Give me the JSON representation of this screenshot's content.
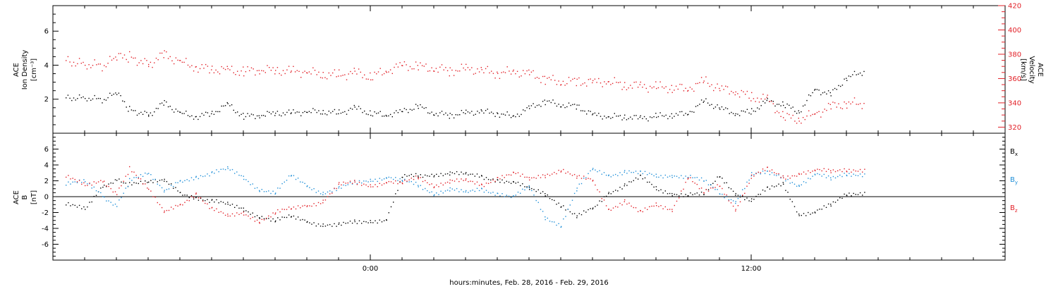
{
  "chart_data": [
    {
      "type": "scatter",
      "panel": "top",
      "xlabel": "hours:minutes, Feb. 28, 2016 - Feb. 29, 2016",
      "x_ticks": [
        "0:00",
        "12:00"
      ],
      "ylabel_left": [
        "ACE",
        "Ion Density",
        "[cm⁻³]"
      ],
      "ylabel_right": [
        "ACE",
        "Velocity",
        "[km/s]"
      ],
      "yticks_left": [
        "2",
        "4",
        "6"
      ],
      "yticks_right": [
        "320",
        "340",
        "360",
        "380",
        "400",
        "420"
      ],
      "ylim_left": [
        0,
        7.5
      ],
      "ylim_right": [
        315,
        420
      ],
      "xlim_hours": [
        -10,
        20
      ],
      "colors": {
        "density": "#000000",
        "velocity": "#e21f26"
      },
      "series": [
        {
          "axis": "left",
          "x": [
            -9.6,
            -9,
            -8.4,
            -8,
            -7.6,
            -7,
            -6.5,
            -6,
            -5.5,
            -5,
            -4.5,
            -4,
            -3.5,
            -3,
            -2.5,
            -2,
            -1.5,
            -1,
            -0.5,
            0,
            0.5,
            1,
            1.5,
            2,
            2.5,
            3,
            3.5,
            4,
            4.5,
            5,
            5.5,
            6,
            6.5,
            7,
            7.5,
            8,
            8.5,
            9,
            9.5,
            10,
            10.5,
            11,
            11.5,
            12,
            12.5,
            13,
            13.5,
            14,
            14.5,
            15,
            15.6
          ],
          "values": [
            2.1,
            2.1,
            2.0,
            2.4,
            1.4,
            1.1,
            1.8,
            1.2,
            1.0,
            1.2,
            1.7,
            1.0,
            1.1,
            1.2,
            1.2,
            1.3,
            1.3,
            1.2,
            1.5,
            1.2,
            1.1,
            1.3,
            1.6,
            1.2,
            1.1,
            1.2,
            1.3,
            1.2,
            1.0,
            1.5,
            1.9,
            1.7,
            1.6,
            1.1,
            1.0,
            1.0,
            0.9,
            1.0,
            1.1,
            1.2,
            1.9,
            1.5,
            1.2,
            1.3,
            1.9,
            1.7,
            1.3,
            2.6,
            2.3,
            3.3,
            3.7
          ]
        },
        {
          "axis": "right",
          "x": [
            -9.6,
            -9,
            -8.4,
            -8,
            -7.6,
            -7,
            -6.5,
            -6,
            -5.5,
            -5,
            -4.5,
            -4,
            -3.5,
            -3,
            -2.5,
            -2,
            -1.5,
            -1,
            -0.5,
            0,
            0.5,
            1,
            1.5,
            2,
            2.5,
            3,
            3.5,
            4,
            4.5,
            5,
            5.5,
            6,
            6.5,
            7,
            7.5,
            8,
            8.5,
            9,
            9.5,
            10,
            10.5,
            11,
            11.5,
            12,
            12.5,
            13,
            13.5,
            14,
            14.5,
            15,
            15.6
          ],
          "values": [
            375,
            372,
            371,
            378,
            378,
            372,
            380,
            374,
            370,
            368,
            367,
            366,
            368,
            367,
            366,
            366,
            364,
            363,
            365,
            362,
            367,
            371,
            370,
            369,
            367,
            368,
            367,
            365,
            366,
            364,
            360,
            358,
            358,
            357,
            358,
            355,
            354,
            353,
            353,
            352,
            358,
            352,
            350,
            345,
            343,
            329,
            327,
            331,
            337,
            340,
            340
          ]
        }
      ]
    },
    {
      "type": "scatter",
      "panel": "bottom",
      "ylabel_left": [
        "ACE",
        "B",
        "[nT]"
      ],
      "yticks_left": [
        "-6",
        "-4",
        "-2",
        "0",
        "2",
        "4",
        "6"
      ],
      "ylim_left": [
        -8,
        8
      ],
      "xlim_hours": [
        -10,
        20
      ],
      "series": [
        {
          "name": "Bx",
          "legend": "B",
          "legend_sub": "x",
          "color": "#000000",
          "x": [
            -9.6,
            -9,
            -8.4,
            -8,
            -7.6,
            -7,
            -6.5,
            -6,
            -5.5,
            -5,
            -4.5,
            -4,
            -3.5,
            -3,
            -2.5,
            -2,
            -1.5,
            -1,
            -0.5,
            0,
            0.5,
            1,
            1.5,
            2,
            2.5,
            3,
            3.5,
            4,
            4.5,
            5,
            5.5,
            6,
            6.5,
            7,
            7.5,
            8,
            8.5,
            9,
            9.5,
            10,
            10.5,
            11,
            11.5,
            12,
            12.5,
            13,
            13.5,
            14,
            14.5,
            15,
            15.6
          ],
          "values": [
            -1,
            -1.5,
            1.5,
            2.3,
            1.5,
            1.9,
            2,
            0.5,
            0,
            -0.5,
            -1,
            -1.5,
            -2.4,
            -3,
            -2.5,
            -3,
            -3.5,
            -3.6,
            -3.2,
            -3,
            -2.8,
            2.5,
            2.7,
            2.9,
            3,
            2.8,
            2.6,
            2.2,
            1.8,
            1,
            0.5,
            -1,
            -2.5,
            -1.5,
            0.6,
            1.5,
            2.5,
            1,
            0.5,
            0.3,
            0.3,
            2.7,
            0.5,
            -0.5,
            1,
            1.7,
            -2.2,
            -2,
            -1,
            0.5,
            0.6
          ]
        },
        {
          "name": "By",
          "legend": "B",
          "legend_sub": "y",
          "color": "#1f8fd8",
          "x": [
            -9.6,
            -9,
            -8.4,
            -8,
            -7.6,
            -7,
            -6.5,
            -6,
            -5.5,
            -5,
            -4.5,
            -4,
            -3.5,
            -3,
            -2.5,
            -2,
            -1.5,
            -1,
            -0.5,
            0,
            0.5,
            1,
            1.5,
            2,
            2.5,
            3,
            3.5,
            4,
            4.5,
            5,
            5.5,
            6,
            6.5,
            7,
            7.5,
            8,
            8.5,
            9,
            9.5,
            10,
            10.5,
            11,
            11.5,
            12,
            12.5,
            13,
            13.5,
            14,
            14.5,
            15,
            15.6
          ],
          "values": [
            1.5,
            2,
            0,
            -1,
            2,
            3,
            0.6,
            2,
            2.6,
            3,
            3.5,
            2.5,
            1,
            0.5,
            2.7,
            1.5,
            0.5,
            1,
            1.8,
            2.2,
            2.5,
            2,
            1.5,
            0.5,
            1,
            0.5,
            1,
            0.5,
            0,
            1.2,
            -2.5,
            -3.5,
            1,
            3.5,
            2.8,
            3.2,
            3,
            2.6,
            2.8,
            2.6,
            2,
            0.5,
            -0.5,
            2.8,
            3,
            2.5,
            1.5,
            2.8,
            2.3,
            3,
            2.9
          ]
        },
        {
          "name": "Bz",
          "legend": "B",
          "legend_sub": "z",
          "color": "#e21f26",
          "x": [
            -9.6,
            -9,
            -8.4,
            -8,
            -7.6,
            -7,
            -6.5,
            -6,
            -5.5,
            -5,
            -4.5,
            -4,
            -3.5,
            -3,
            -2.5,
            -2,
            -1.5,
            -1,
            -0.5,
            0,
            0.5,
            1,
            1.5,
            2,
            2.5,
            3,
            3.5,
            4,
            4.5,
            5,
            5.5,
            6,
            6.5,
            7,
            7.5,
            8,
            8.5,
            9,
            9.5,
            10,
            10.5,
            11,
            11.5,
            12,
            12.5,
            13,
            13.5,
            14,
            14.5,
            15,
            15.6
          ],
          "values": [
            2.5,
            1.5,
            2,
            0.5,
            3.5,
            1,
            -2,
            -1,
            0.5,
            -1.5,
            -2.5,
            -2,
            -3,
            -2,
            -1.5,
            -1,
            -0.5,
            1.5,
            1.8,
            1.5,
            1.9,
            1.7,
            2.5,
            1.5,
            2,
            2,
            1.5,
            2.5,
            3,
            2.2,
            2.8,
            3.5,
            2.5,
            2,
            -1.5,
            -0.5,
            -2,
            -1,
            -1.5,
            2.5,
            0.5,
            1.5,
            -1.5,
            2.5,
            3.5,
            2.5,
            3,
            3.3,
            3.2,
            3.5,
            3.5
          ]
        }
      ]
    }
  ]
}
